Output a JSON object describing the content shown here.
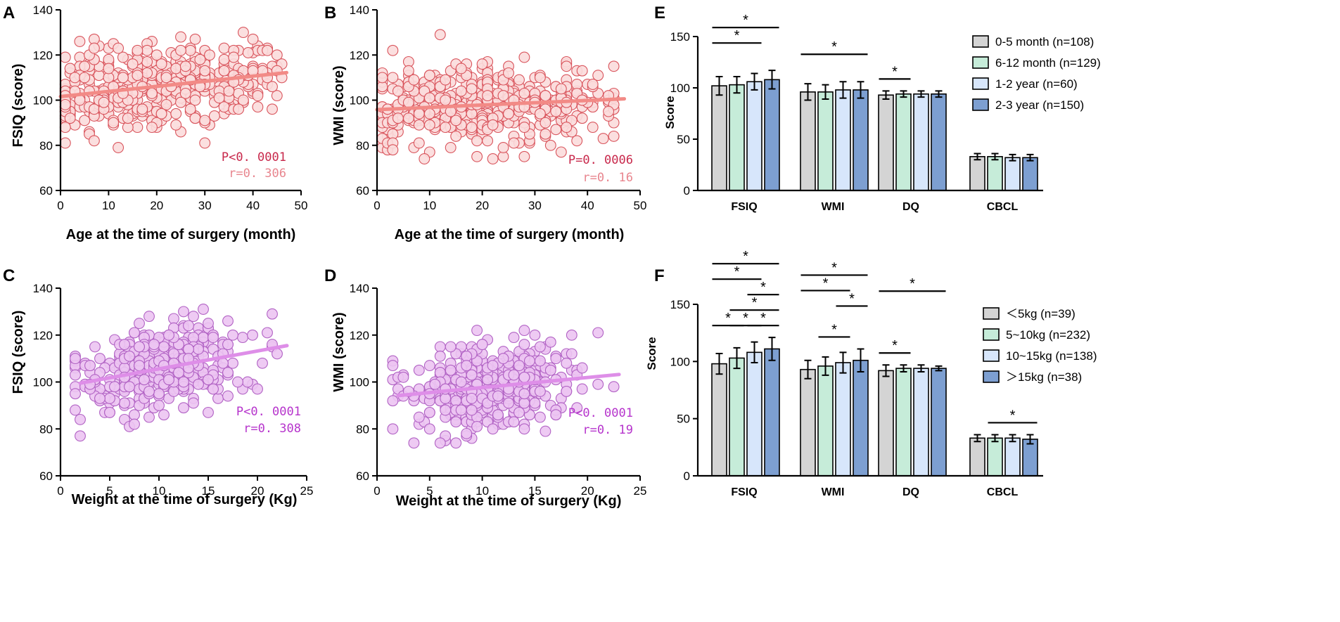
{
  "colors": {
    "scatter_red_fill": "#fbdcdc",
    "scatter_red_stroke": "#d9545c",
    "trend_red": "#f28a86",
    "stat_red_p": "#c8284b",
    "stat_red_r": "#e8858e",
    "scatter_purple_fill": "#ecc4f2",
    "scatter_purple_stroke": "#b162c4",
    "trend_purple": "#de8ee8",
    "stat_purple": "#b634cc",
    "bar_gray": "#d4d4d4",
    "bar_green": "#c6ecd9",
    "bar_lightblue": "#d7e6fb",
    "bar_blue": "#7d9fd1"
  },
  "chart_data": [
    {
      "id": "A",
      "panel_label": "A",
      "type": "scatter",
      "title": "",
      "xlabel": "Age at the time of surgery (month)",
      "ylabel": "FSIQ (score)",
      "xlim": [
        0,
        50
      ],
      "ylim": [
        60,
        140
      ],
      "xticks": [
        0,
        10,
        20,
        30,
        40,
        50
      ],
      "yticks": [
        60,
        80,
        100,
        120,
        140
      ],
      "fit": {
        "x0": 0,
        "y0": 101.6,
        "x1": 47,
        "y1": 112.2
      },
      "stats": {
        "p": "P<0. 0001",
        "r": "r=0. 306"
      },
      "n_points": 447,
      "points_note": "x in months (0-47), y FSIQ scores centered near 105"
    },
    {
      "id": "B",
      "panel_label": "B",
      "type": "scatter",
      "title": "",
      "xlabel": "Age at the time of surgery (month)",
      "ylabel": "WMI (score)",
      "xlim": [
        0,
        50
      ],
      "ylim": [
        60,
        140
      ],
      "xticks": [
        0,
        10,
        20,
        30,
        40,
        50
      ],
      "yticks": [
        60,
        80,
        100,
        120,
        140
      ],
      "fit": {
        "x0": 0,
        "y0": 95.8,
        "x1": 47,
        "y1": 100.6
      },
      "stats": {
        "p": "P=0. 0006",
        "r": "r=0. 16"
      },
      "n_points": 447,
      "points_note": "x in months (0-47), y WMI scores centered near 97"
    },
    {
      "id": "C",
      "panel_label": "C",
      "type": "scatter",
      "title": "",
      "xlabel": "Weight at the time of surgery (Kg)",
      "ylabel": "FSIQ (score)",
      "xlim": [
        0,
        25
      ],
      "ylim": [
        60,
        140
      ],
      "xticks": [
        0,
        5,
        10,
        15,
        20,
        25
      ],
      "yticks": [
        60,
        80,
        100,
        120,
        140
      ],
      "fit": {
        "x0": 2,
        "y0": 99.5,
        "x1": 23,
        "y1": 115.5
      },
      "stats": {
        "p": "P<0. 0001",
        "r": "r=0. 308"
      },
      "n_points": 447,
      "points_note": "x in kg (1.7-23), y FSIQ scores"
    },
    {
      "id": "D",
      "panel_label": "D",
      "type": "scatter",
      "title": "",
      "xlabel": "Weight at the time of surgery (Kg)",
      "ylabel": "WMI (score)",
      "xlim": [
        0,
        25
      ],
      "ylim": [
        60,
        140
      ],
      "xticks": [
        0,
        5,
        10,
        15,
        20,
        25
      ],
      "yticks": [
        60,
        80,
        100,
        120,
        140
      ],
      "fit": {
        "x0": 2,
        "y0": 94.2,
        "x1": 23,
        "y1": 103.2
      },
      "stats": {
        "p": "P<0. 0001",
        "r": "r=0. 19"
      },
      "n_points": 447,
      "points_note": "x in kg (1.7-23), y WMI scores"
    },
    {
      "id": "E",
      "panel_label": "E",
      "type": "bar",
      "title": "",
      "xlabel": "",
      "ylabel": "Score",
      "ylim": [
        0,
        150
      ],
      "yticks": [
        0,
        50,
        100,
        150
      ],
      "categories": [
        "FSIQ",
        "WMI",
        "DQ",
        "CBCL"
      ],
      "series": [
        {
          "name": "0-5 month (n=108)",
          "values": [
            102,
            96,
            93,
            33
          ],
          "errors": [
            9,
            8,
            4,
            3
          ]
        },
        {
          "name": "6-12 month (n=129)",
          "values": [
            103,
            96,
            94,
            33
          ],
          "errors": [
            8,
            7,
            3,
            3
          ]
        },
        {
          "name": "1-2 year (n=60)",
          "values": [
            106,
            98,
            94,
            32
          ],
          "errors": [
            8,
            8,
            3,
            3
          ]
        },
        {
          "name": "2-3 year (n=150)",
          "values": [
            108,
            98,
            94,
            32
          ],
          "errors": [
            9,
            8,
            3,
            3
          ]
        }
      ],
      "significance": [
        {
          "category": 0,
          "from": 0,
          "to": 3,
          "level": 2,
          "label": "*"
        },
        {
          "category": 0,
          "from": 0,
          "to": 2,
          "level": 1,
          "label": "*"
        },
        {
          "category": 1,
          "from": 0,
          "to": 3,
          "level": 1,
          "label": "*"
        },
        {
          "category": 2,
          "from": 0,
          "to": 1,
          "level": 0,
          "label": "*"
        }
      ],
      "legend_position": "top-right"
    },
    {
      "id": "F",
      "panel_label": "F",
      "type": "bar",
      "title": "",
      "xlabel": "",
      "ylabel": "Score",
      "ylim": [
        0,
        150
      ],
      "yticks": [
        0,
        50,
        100,
        150
      ],
      "categories": [
        "FSIQ",
        "WMI",
        "DQ",
        "CBCL"
      ],
      "series": [
        {
          "name": "＜5kg (n=39)",
          "values": [
            98,
            93,
            92,
            33
          ],
          "errors": [
            9,
            8,
            5,
            3
          ]
        },
        {
          "name": "5~10kg (n=232)",
          "values": [
            103,
            96,
            94,
            33
          ],
          "errors": [
            9,
            8,
            3,
            3
          ]
        },
        {
          "name": "10~15kg (n=138)",
          "values": [
            108,
            99,
            94,
            33
          ],
          "errors": [
            9,
            9,
            3,
            3
          ]
        },
        {
          "name": "＞15kg (n=38)",
          "values": [
            111,
            101,
            94,
            32
          ],
          "errors": [
            10,
            10,
            2,
            4
          ]
        }
      ],
      "significance": [
        {
          "category": 0,
          "from": 0,
          "to": 3,
          "level": 4,
          "label": "*"
        },
        {
          "category": 0,
          "from": 0,
          "to": 2,
          "level": 3,
          "label": "*"
        },
        {
          "category": 0,
          "from": 2,
          "to": 3,
          "level": 2,
          "label": "*"
        },
        {
          "category": 0,
          "from": 1,
          "to": 3,
          "level": 1,
          "label": "*"
        },
        {
          "category": 0,
          "from": 0,
          "to": 1,
          "level": 0,
          "label": "*"
        },
        {
          "category": 0,
          "from": 1,
          "to": 2,
          "level": 0,
          "label": "*"
        },
        {
          "category": 0,
          "from": 2,
          "to": 3,
          "level": 0,
          "label": "*"
        },
        {
          "category": 1,
          "from": 0,
          "to": 3,
          "level": 4,
          "label": "*"
        },
        {
          "category": 1,
          "from": 0,
          "to": 2,
          "level": 3,
          "label": "*"
        },
        {
          "category": 1,
          "from": 2,
          "to": 3,
          "level": 2,
          "label": "*"
        },
        {
          "category": 1,
          "from": 1,
          "to": 2,
          "level": 0,
          "label": "*"
        },
        {
          "category": 2,
          "from": 0,
          "to": 3,
          "level": 4,
          "label": "*"
        },
        {
          "category": 2,
          "from": 0,
          "to": 1,
          "level": 0,
          "label": "*"
        },
        {
          "category": 3,
          "from": 1,
          "to": 3,
          "level": 0,
          "label": "*"
        }
      ],
      "legend_position": "right"
    }
  ]
}
